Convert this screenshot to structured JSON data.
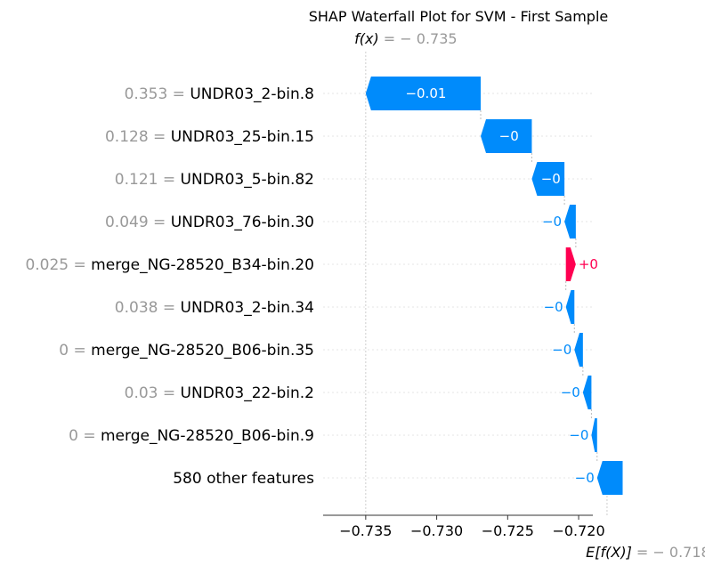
{
  "chart_data": {
    "type": "waterfall",
    "title": "SHAP Waterfall Plot for SVM - First Sample",
    "fx": {
      "label": "f(x)",
      "value": -0.735,
      "display": "− 0.735"
    },
    "base": {
      "label": "E[f(X)]",
      "value": -0.718,
      "display": "− 0.718"
    },
    "xlim": [
      -0.738,
      -0.719
    ],
    "xticks": [
      -0.735,
      -0.73,
      -0.725,
      -0.72
    ],
    "xtick_labels": [
      "−0.735",
      "−0.730",
      "−0.725",
      "−0.720"
    ],
    "features": [
      {
        "value": "0.353",
        "name": "UNDR03_2-bin.8",
        "shap": -0.0081,
        "label": "−0.01"
      },
      {
        "value": "0.128",
        "name": "UNDR03_25-bin.15",
        "shap": -0.0036,
        "label": "−0"
      },
      {
        "value": "0.121",
        "name": "UNDR03_5-bin.82",
        "shap": -0.0023,
        "label": "−0"
      },
      {
        "value": "0.049",
        "name": "UNDR03_76-bin.30",
        "shap": -0.0008,
        "label": "−0"
      },
      {
        "value": "0.025",
        "name": "merge_NG-28520_B34-bin.20",
        "shap": 0.0007,
        "label": "+0"
      },
      {
        "value": "0.038",
        "name": "UNDR03_2-bin.34",
        "shap": -0.0006,
        "label": "−0"
      },
      {
        "value": "0",
        "name": "merge_NG-28520_B06-bin.35",
        "shap": -0.0006,
        "label": "−0"
      },
      {
        "value": "0.03",
        "name": "UNDR03_22-bin.2",
        "shap": -0.0006,
        "label": "−0"
      },
      {
        "value": "0",
        "name": "merge_NG-28520_B06-bin.9",
        "shap": -0.0004,
        "label": "−0"
      },
      {
        "value": "",
        "name": "580 other features",
        "shap": -0.0018,
        "label": "−0"
      }
    ],
    "colors": {
      "negative": "#008bfb",
      "positive": "#ff0051",
      "muted": "#999999",
      "grid": "#cccccc"
    }
  }
}
